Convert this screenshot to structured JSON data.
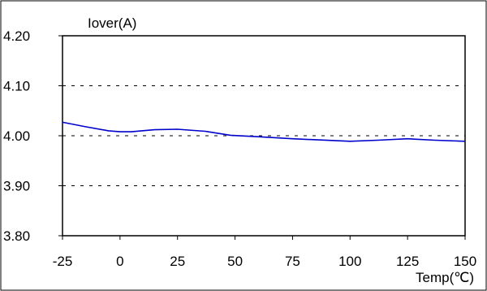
{
  "chart_data": {
    "type": "line",
    "title": "",
    "xlabel": "Temp(℃)",
    "ylabel": "Iover(A)",
    "xlim": [
      -25,
      150
    ],
    "ylim": [
      3.8,
      4.2
    ],
    "x_ticks": [
      "-25",
      "0",
      "25",
      "50",
      "75",
      "100",
      "125",
      "150"
    ],
    "y_ticks": [
      "3.80",
      "3.90",
      "4.00",
      "4.10",
      "4.20"
    ],
    "grid": "horizontal dashed",
    "series": [
      {
        "color": "#0000cc",
        "points": [
          [
            -25,
            4.027
          ],
          [
            -15,
            4.018
          ],
          [
            -5,
            4.01
          ],
          [
            0,
            4.008
          ],
          [
            5,
            4.008
          ],
          [
            15,
            4.012
          ],
          [
            25,
            4.013
          ],
          [
            37,
            4.009
          ],
          [
            48,
            4.001
          ],
          [
            60,
            3.998
          ],
          [
            75,
            3.994
          ],
          [
            100,
            3.989
          ],
          [
            112,
            3.991
          ],
          [
            125,
            3.994
          ],
          [
            137,
            3.991
          ],
          [
            150,
            3.989
          ]
        ]
      }
    ]
  }
}
